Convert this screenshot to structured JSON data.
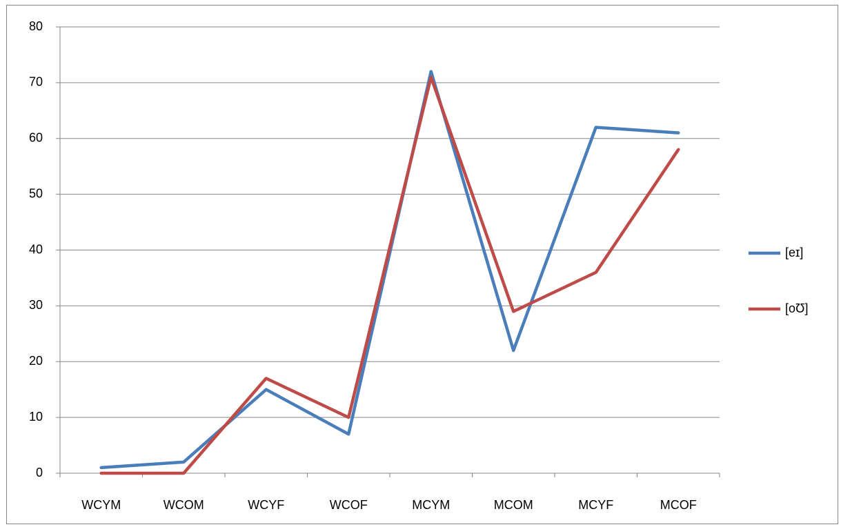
{
  "chart_data": {
    "type": "line",
    "categories": [
      "WCYM",
      "WCOM",
      "WCYF",
      "WCOF",
      "MCYM",
      "MCOM",
      "MCYF",
      "MCOF"
    ],
    "series": [
      {
        "name": "[eɪ]",
        "color": "#4a7ebb",
        "values": [
          1,
          2,
          15,
          7,
          72,
          22,
          62,
          61
        ]
      },
      {
        "name": "[oƱ]",
        "color": "#be4b48",
        "values": [
          0,
          0,
          17,
          10,
          71,
          29,
          36,
          58
        ]
      }
    ],
    "ylim": [
      0,
      80
    ],
    "yticks": [
      0,
      10,
      20,
      30,
      40,
      50,
      60,
      70,
      80
    ],
    "grid": true,
    "legend": "right"
  }
}
